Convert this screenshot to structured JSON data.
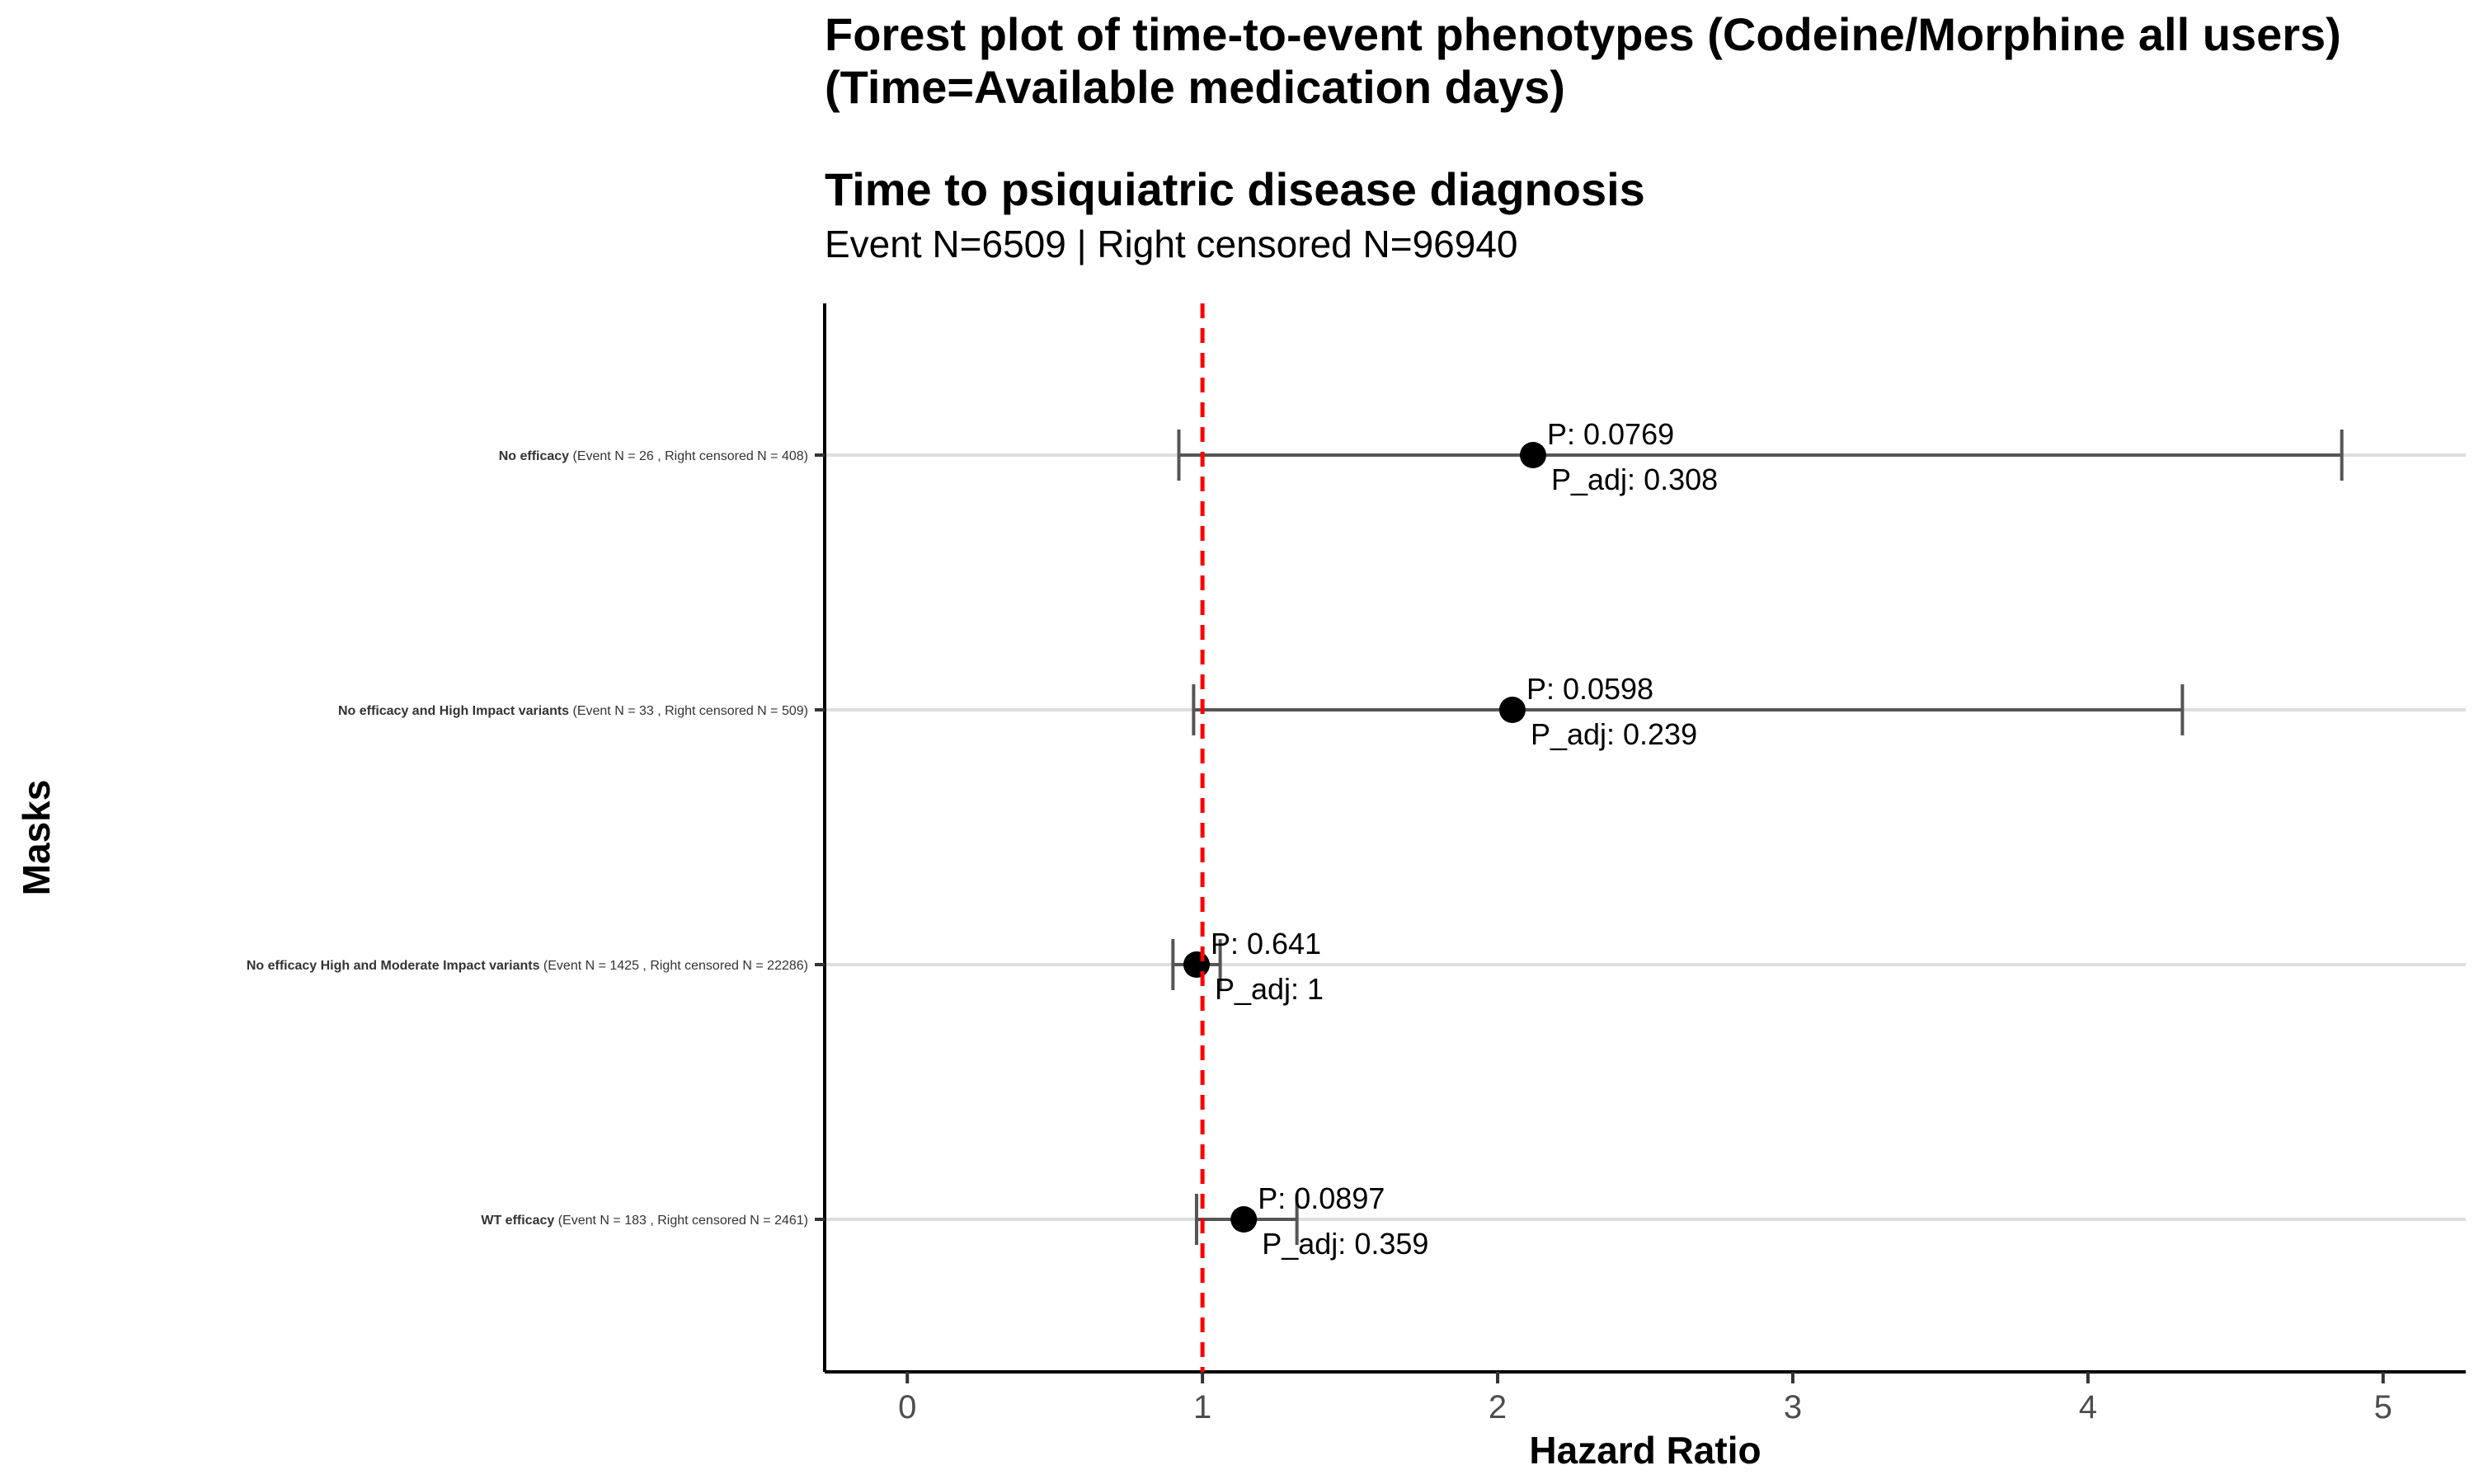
{
  "title_line1": "Forest plot of time-to-event phenotypes (Codeine/Morphine all users)",
  "title_line2": "(Time=Available medication days)",
  "subtitle": "Time to psiquiatric disease diagnosis",
  "caption": "Event N=6509 | Right censored N=96940",
  "colors": {
    "reference_line": "#ff0000",
    "error_bar": "#555555",
    "point": "#000000",
    "gridline": "#dedede"
  },
  "chart_data": {
    "type": "forest",
    "xlabel": "Hazard Ratio",
    "ylabel": "Masks",
    "xlim": [
      -0.28,
      5.28
    ],
    "xticks": [
      "0",
      "1",
      "2",
      "3",
      "4",
      "5"
    ],
    "reference_line": 1,
    "grid": "horizontal",
    "rows": [
      {
        "label_bold": "No efficacy",
        "label_rest": " (Event N = 26 , Right censored N = 408)",
        "hr": 2.12,
        "ci_low": 0.92,
        "ci_high": 4.86,
        "p": "P: 0.0769",
        "p_adj": "P_adj: 0.308"
      },
      {
        "label_bold": "No efficacy and High Impact variants",
        "label_rest": " (Event N = 33 , Right censored N = 509)",
        "hr": 2.05,
        "ci_low": 0.97,
        "ci_high": 4.32,
        "p": "P: 0.0598",
        "p_adj": "P_adj: 0.239"
      },
      {
        "label_bold": "No efficacy High and Moderate Impact variants",
        "label_rest": " (Event N = 1425 , Right censored N = 22286)",
        "hr": 0.98,
        "ci_low": 0.9,
        "ci_high": 1.06,
        "p": "P: 0.641",
        "p_adj": "P_adj: 1"
      },
      {
        "label_bold": "WT efficacy",
        "label_rest": " (Event N = 183 , Right censored N = 2461)",
        "hr": 1.14,
        "ci_low": 0.98,
        "ci_high": 1.32,
        "p": "P: 0.0897",
        "p_adj": "P_adj: 0.359"
      }
    ]
  }
}
